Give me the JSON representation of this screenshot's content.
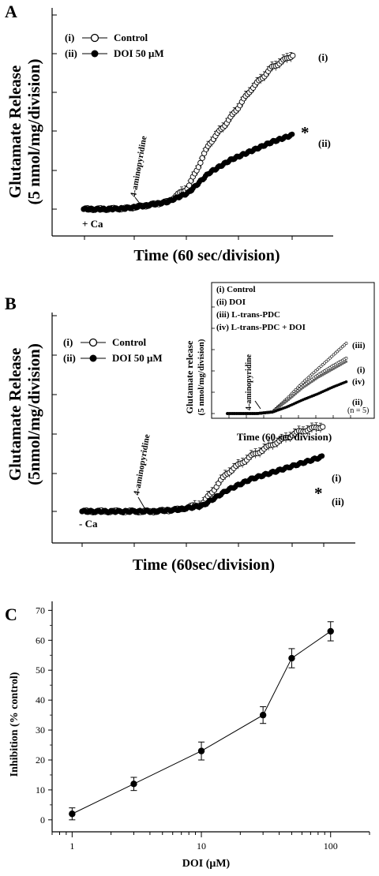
{
  "figure": {
    "panelA": {
      "letter": "A",
      "ylabel_line1": "Glutamate Release",
      "ylabel_line2": "(5 nmol/mg/division)",
      "xlabel": "Time (60 sec/division)",
      "ion_label": "+ Ca",
      "agent_label": "4-aminopyridine",
      "legend": [
        {
          "tag": "(i)",
          "name": "Control"
        },
        {
          "tag": "(ii)",
          "name": "DOI 50 μM"
        }
      ],
      "curve_tags": [
        "(i)",
        "(ii)"
      ],
      "significance": "*"
    },
    "panelB": {
      "letter": "B",
      "ylabel_line1": "Glutamate Release",
      "ylabel_line2": "(5nmol/mg/division)",
      "xlabel": "Time (60sec/division)",
      "ion_label": "- Ca",
      "agent_label": "4-aminopyridine",
      "legend": [
        {
          "tag": "(i)",
          "name": "Control"
        },
        {
          "tag": "(ii)",
          "name": "DOI 50 μM"
        }
      ],
      "curve_tags": [
        "(i)",
        "(ii)"
      ],
      "significance": "*",
      "inset": {
        "ylabel_line1": "Glutamate release",
        "ylabel_line2": "(5 nmol/mg/division)",
        "xlabel": "Time (60 sec/division)",
        "agent_label": "4-aminopyridine",
        "legend": [
          "(i)   Control",
          "(ii)  DOI",
          "(iii) L-trans-PDC",
          "(iv)  L-trans-PDC + DOI"
        ],
        "curve_tags": [
          "(iii)",
          "(i)",
          "(iv)",
          "(ii)"
        ],
        "n_label": "(n = 5)"
      }
    },
    "panelC": {
      "letter": "C",
      "ylabel": "Inhibition (% control)",
      "xlabel": "DOI (μM)",
      "xticks": [
        "1",
        "10",
        "100"
      ],
      "yticks": [
        "0",
        "10",
        "20",
        "30",
        "40",
        "50",
        "60",
        "70"
      ]
    }
  },
  "chart_data": [
    {
      "type": "line",
      "panel": "A",
      "xlabel": "Time (60 sec/division)",
      "ylabel": "Glutamate Release (5 nmol/mg/division)",
      "x_unit_note": "divisions of 60 sec",
      "series": [
        {
          "name": "Control",
          "x": [
            0,
            1,
            2,
            3,
            4,
            5,
            6,
            7,
            8,
            9,
            10
          ],
          "y": [
            0,
            0,
            0.02,
            0.1,
            0.2,
            0.6,
            1.8,
            2.5,
            3.3,
            3.9,
            4.25
          ]
        },
        {
          "name": "DOI 50 μM",
          "x": [
            0,
            1,
            2,
            3,
            4,
            5,
            6,
            7,
            8,
            9,
            10
          ],
          "y": [
            0,
            0,
            0.02,
            0.1,
            0.2,
            0.45,
            1.0,
            1.35,
            1.6,
            1.85,
            2.05
          ]
        }
      ]
    },
    {
      "type": "line",
      "panel": "B",
      "xlabel": "Time (60sec/division)",
      "ylabel": "Glutamate Release (5nmol/mg/division)",
      "series": [
        {
          "name": "Control",
          "x": [
            0,
            1,
            2,
            3,
            4,
            5,
            6,
            7,
            8,
            9,
            10
          ],
          "y": [
            0,
            0,
            0,
            0,
            0.05,
            0.2,
            1.0,
            1.45,
            1.8,
            2.1,
            2.25
          ]
        },
        {
          "name": "DOI 50 μM",
          "x": [
            0,
            1,
            2,
            3,
            4,
            5,
            6,
            7,
            8,
            9,
            10
          ],
          "y": [
            0,
            0,
            0,
            0,
            0.05,
            0.15,
            0.55,
            0.85,
            1.05,
            1.25,
            1.45
          ]
        }
      ]
    },
    {
      "type": "line",
      "panel": "B-inset",
      "xlabel": "Time (60 sec/division)",
      "ylabel": "Glutamate release (5 nmol/mg/division)",
      "series": [
        {
          "name": "L-trans-PDC",
          "x": [
            0,
            1,
            2,
            3,
            4,
            5,
            6,
            7,
            8
          ],
          "y": [
            0,
            0,
            0,
            0.1,
            0.9,
            1.8,
            2.6,
            3.4,
            4.2
          ]
        },
        {
          "name": "Control",
          "x": [
            0,
            1,
            2,
            3,
            4,
            5,
            6,
            7,
            8
          ],
          "y": [
            0,
            0,
            0,
            0.1,
            0.8,
            1.6,
            2.25,
            2.8,
            3.3
          ]
        },
        {
          "name": "L-trans-PDC + DOI",
          "x": [
            0,
            1,
            2,
            3,
            4,
            5,
            6,
            7,
            8
          ],
          "y": [
            0,
            0,
            0,
            0.1,
            0.75,
            1.5,
            2.1,
            2.6,
            3.1
          ]
        },
        {
          "name": "DOI",
          "x": [
            0,
            1,
            2,
            3,
            4,
            5,
            6,
            7,
            8
          ],
          "y": [
            0,
            0,
            0,
            0.08,
            0.4,
            0.8,
            1.15,
            1.55,
            1.9
          ]
        }
      ]
    },
    {
      "type": "line",
      "panel": "C",
      "xlabel": "DOI (μM)",
      "ylabel": "Inhibition (% control)",
      "xscale": "log",
      "xlim": [
        0.7,
        200
      ],
      "ylim": [
        -4,
        73
      ],
      "x": [
        1,
        3,
        10,
        30,
        50,
        100
      ],
      "y": [
        2,
        12,
        23,
        35,
        54,
        63
      ],
      "error": [
        2,
        2.2,
        3,
        2.8,
        3.2,
        3.2
      ]
    }
  ]
}
